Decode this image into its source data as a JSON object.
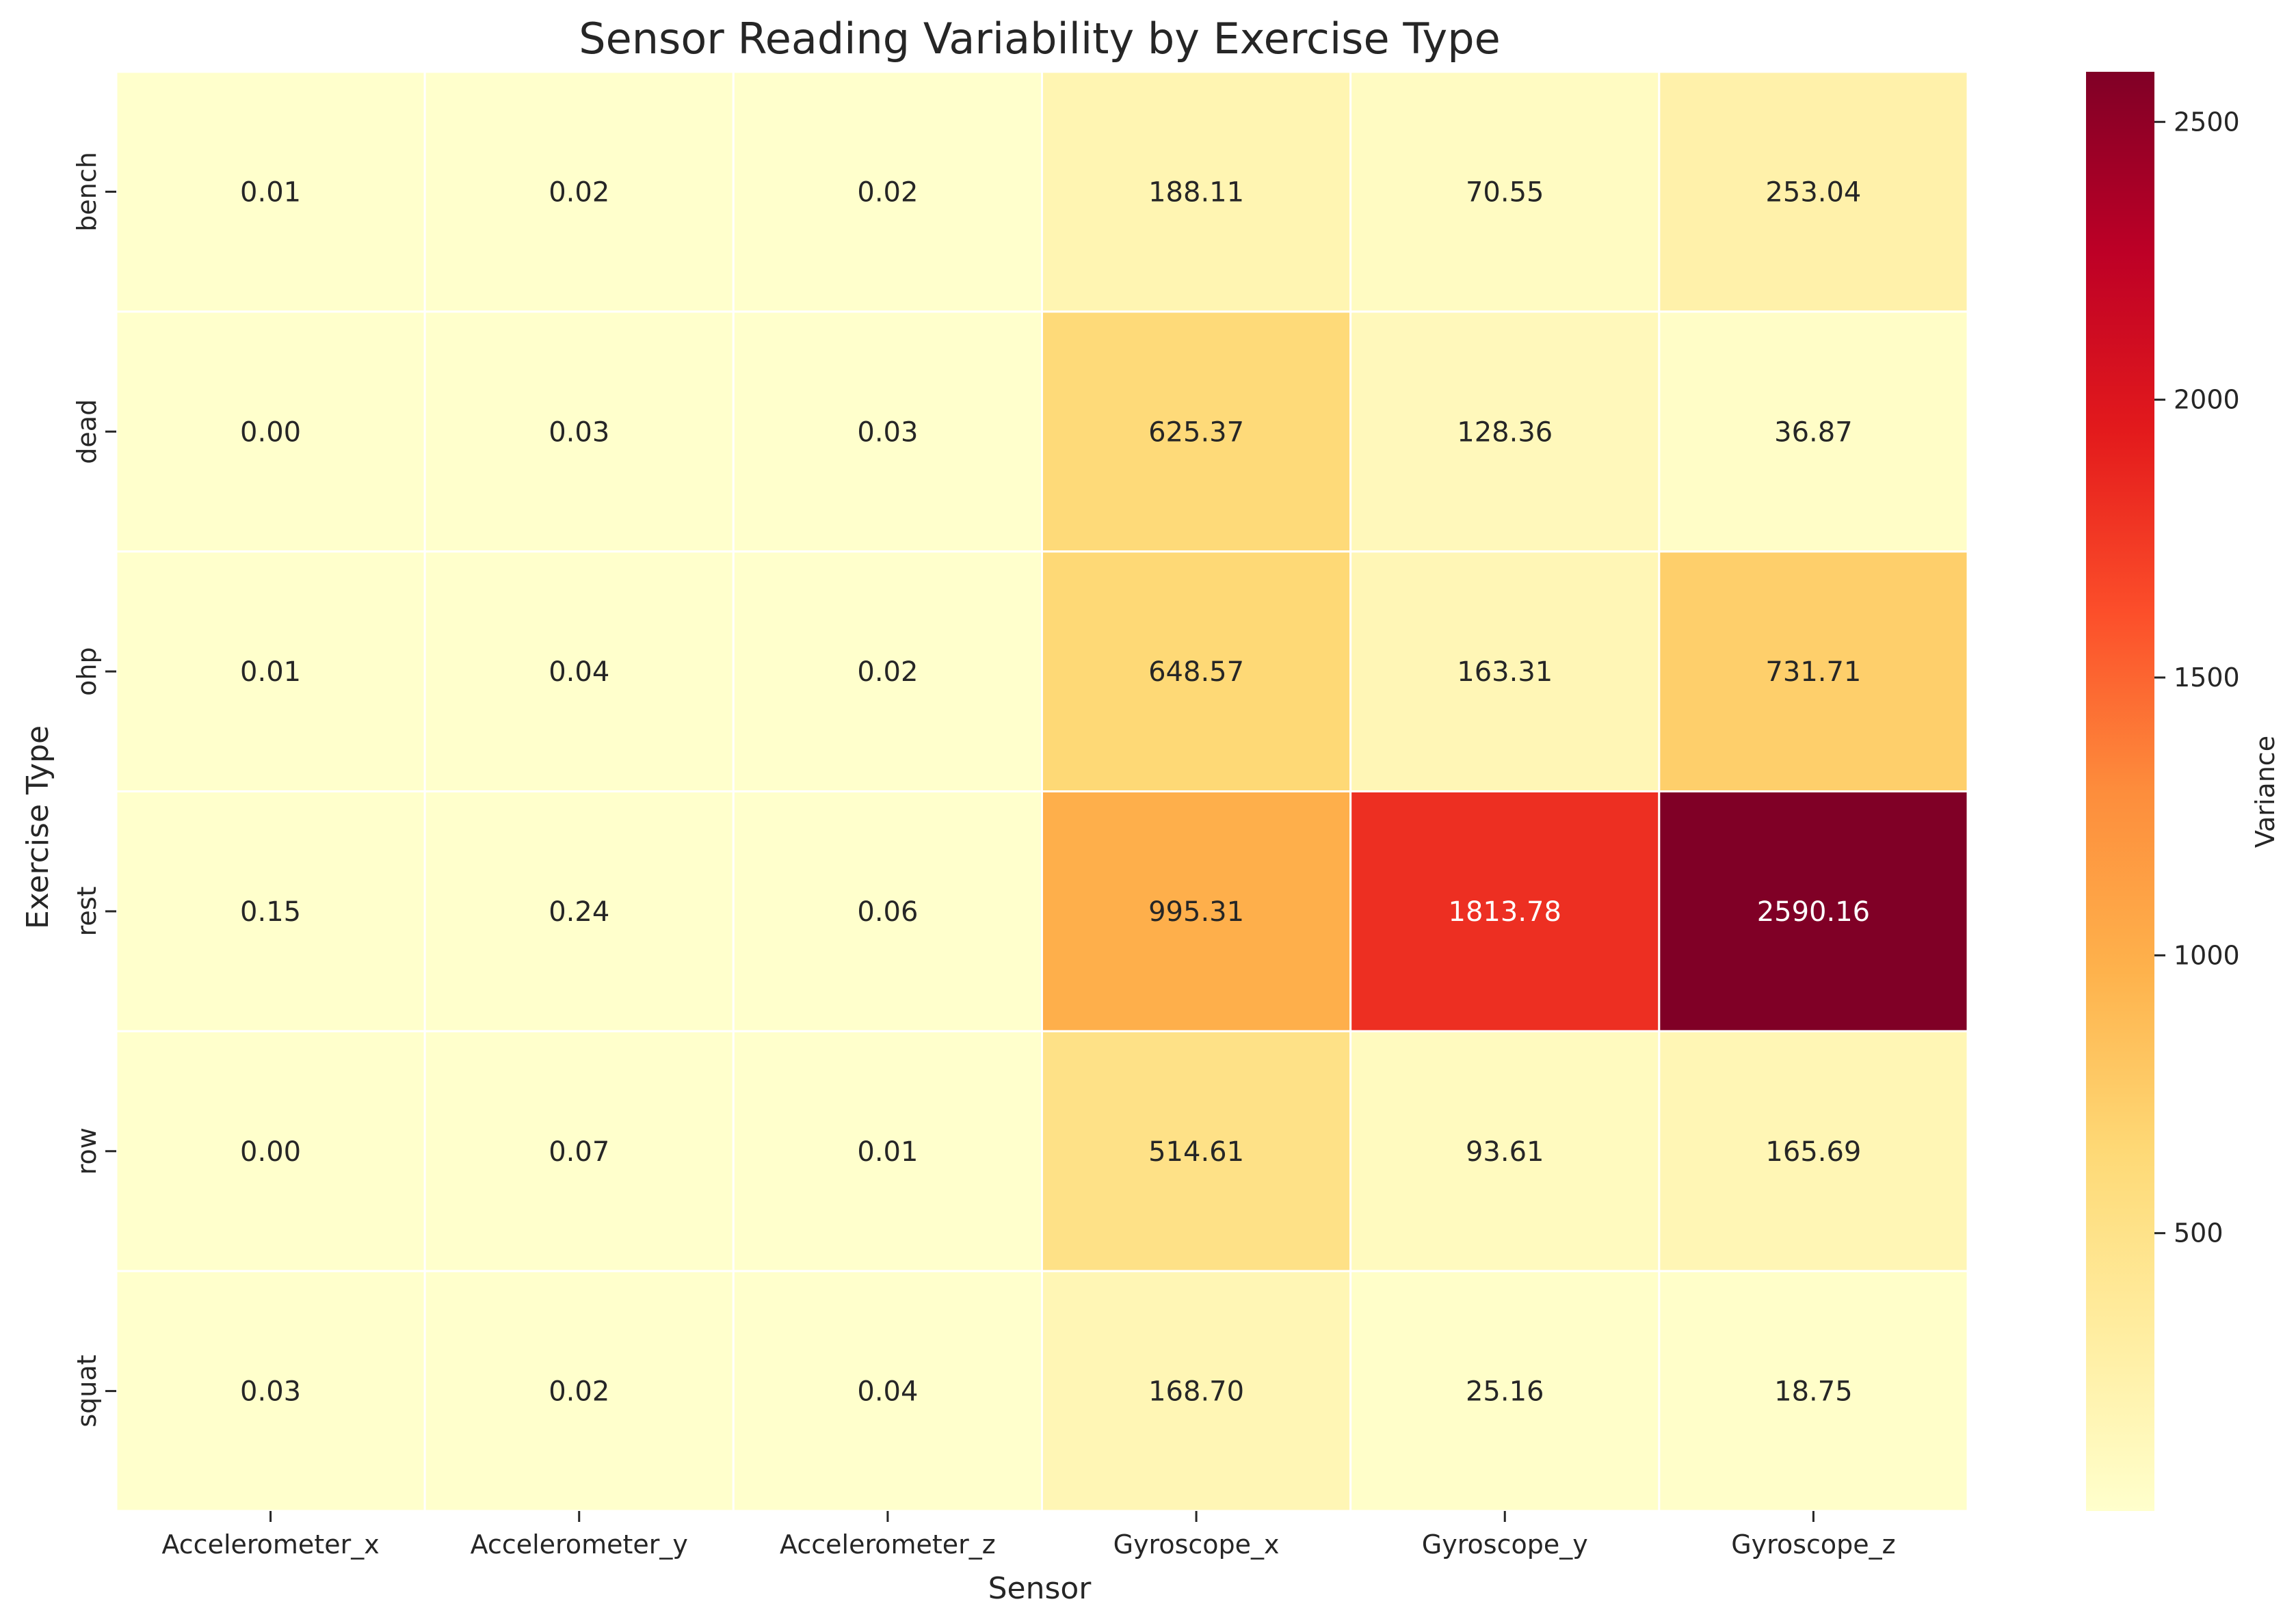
{
  "chart_data": {
    "type": "heatmap",
    "title": "Sensor Reading Variability by Exercise Type",
    "xlabel": "Sensor",
    "ylabel": "Exercise Type",
    "columns": [
      "Accelerometer_x",
      "Accelerometer_y",
      "Accelerometer_z",
      "Gyroscope_x",
      "Gyroscope_y",
      "Gyroscope_z"
    ],
    "rows": [
      "bench",
      "dead",
      "ohp",
      "rest",
      "row",
      "squat"
    ],
    "values": [
      [
        0.01,
        0.02,
        0.02,
        188.11,
        70.55,
        253.04
      ],
      [
        0.0,
        0.03,
        0.03,
        625.37,
        128.36,
        36.87
      ],
      [
        0.01,
        0.04,
        0.02,
        648.57,
        163.31,
        731.71
      ],
      [
        0.15,
        0.24,
        0.06,
        995.31,
        1813.78,
        2590.16
      ],
      [
        0.0,
        0.07,
        0.01,
        514.61,
        93.61,
        165.69
      ],
      [
        0.03,
        0.02,
        0.04,
        168.7,
        25.16,
        18.75
      ]
    ],
    "value_labels": [
      [
        "0.01",
        "0.02",
        "0.02",
        "188.11",
        "70.55",
        "253.04"
      ],
      [
        "0.00",
        "0.03",
        "0.03",
        "625.37",
        "128.36",
        "36.87"
      ],
      [
        "0.01",
        "0.04",
        "0.02",
        "648.57",
        "163.31",
        "731.71"
      ],
      [
        "0.15",
        "0.24",
        "0.06",
        "995.31",
        "1813.78",
        "2590.16"
      ],
      [
        "0.00",
        "0.07",
        "0.01",
        "514.61",
        "93.61",
        "165.69"
      ],
      [
        "0.03",
        "0.02",
        "0.04",
        "168.70",
        "25.16",
        "18.75"
      ]
    ],
    "colorbar": {
      "label": "Variance",
      "range": [
        0,
        2590.16
      ],
      "ticks": [
        500,
        1000,
        1500,
        2000,
        2500
      ],
      "tick_labels": [
        "500",
        "1000",
        "1500",
        "2000",
        "2500"
      ],
      "colormap": "YlOrRd"
    }
  }
}
